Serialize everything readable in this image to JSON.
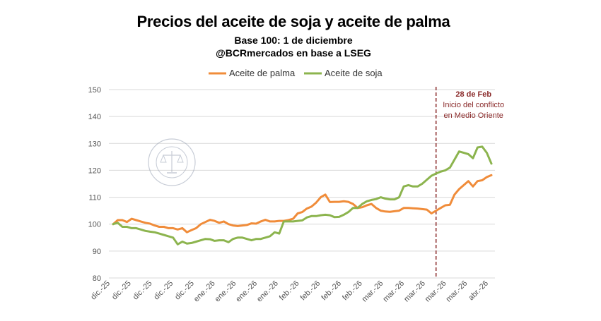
{
  "chart_data": {
    "type": "line",
    "title": "Precios del aceite de soja y aceite de palma",
    "subtitle": "Base 100: 1 de diciembre",
    "source": "@BCRmercados en base a LSEG",
    "ylim": [
      80,
      150
    ],
    "yticks": [
      80,
      90,
      100,
      110,
      120,
      130,
      140,
      150
    ],
    "xticks": [
      "dic.-25",
      "dic.-25",
      "dic.-25",
      "dic.-25",
      "dic.-25",
      "ene.-26",
      "ene.-26",
      "ene.-26",
      "ene.-26",
      "feb.-26",
      "feb.-26",
      "feb.-26",
      "feb.-26",
      "mar.-26",
      "mar.-26",
      "mar.-26",
      "mar.-26",
      "mar.-26",
      "abr.-26"
    ],
    "legend": [
      "Aceite de palma",
      "Aceite de soja"
    ],
    "grid": true,
    "n_points": 83,
    "series": [
      {
        "name": "Aceite de palma",
        "color": "#f08c3a",
        "values": [
          100,
          101.5,
          101.5,
          100.8,
          102,
          101.5,
          101,
          100.5,
          100.2,
          99.5,
          99,
          99,
          98.5,
          98.5,
          98,
          98.5,
          97,
          97.8,
          98.5,
          100,
          100.8,
          101.6,
          101.2,
          100.5,
          101,
          100,
          99.5,
          99.3,
          99.5,
          99.7,
          100.3,
          100.2,
          101,
          101.6,
          101,
          101,
          101.2,
          101.2,
          101.5,
          102,
          104,
          104.5,
          105.8,
          106.5,
          108,
          110,
          111,
          108.2,
          108.3,
          108.3,
          108.5,
          108.3,
          107.5,
          106,
          106.3,
          107,
          107.5,
          106,
          105,
          104.7,
          104.6,
          104.8,
          105,
          106,
          106,
          105.9,
          105.8,
          105.6,
          105.4,
          104,
          105,
          106,
          107,
          107.2,
          111,
          113,
          114.5,
          116,
          114,
          116,
          116.3,
          117.5,
          118.2
        ]
      },
      {
        "name": "Aceite de soja",
        "color": "#8cb44e",
        "values": [
          100,
          100.5,
          99,
          99,
          98.5,
          98.5,
          98,
          97.5,
          97.2,
          97,
          96.5,
          96,
          95.5,
          95,
          92.5,
          93.5,
          92.8,
          93,
          93.5,
          94,
          94.5,
          94.4,
          93.8,
          94,
          94,
          93.3,
          94.5,
          95,
          95,
          94.5,
          94,
          94.5,
          94.5,
          95,
          95.5,
          97,
          96.5,
          101,
          101,
          101,
          101.2,
          101.4,
          102.5,
          103,
          103,
          103.3,
          103.5,
          103.3,
          102.6,
          102.7,
          103.5,
          104.5,
          106,
          106,
          107.5,
          108.5,
          109,
          109.3,
          110,
          109.5,
          109.2,
          109.2,
          110,
          114,
          114.5,
          114,
          114,
          115,
          116.5,
          118,
          118.8,
          119.5,
          120,
          121,
          124,
          127,
          126.5,
          126,
          124.5,
          128.5,
          128.8,
          126.5,
          122.5
        ]
      }
    ],
    "annotation": {
      "date": "28 de Feb",
      "line1": "Inicio del conflicto",
      "line2": "en Medio Oriente",
      "color": "#8a2a2a",
      "at_index": 70
    },
    "watermark": "BOLSA DE COMERCIO DE ROSARIO"
  }
}
